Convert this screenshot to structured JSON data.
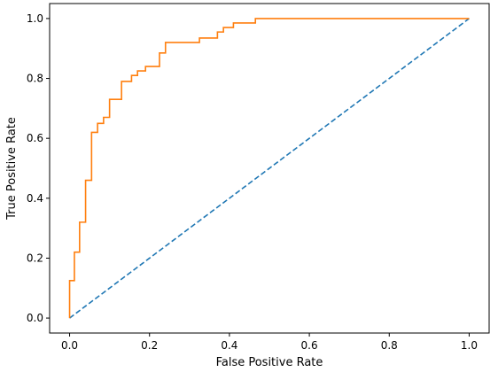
{
  "chart_data": {
    "type": "line",
    "xlabel": "False Positive Rate",
    "ylabel": "True Positive Rate",
    "xlim": [
      -0.05,
      1.05
    ],
    "ylim": [
      -0.05,
      1.05
    ],
    "xticks": [
      "0.0",
      "0.2",
      "0.4",
      "0.6",
      "0.8",
      "1.0"
    ],
    "yticks": [
      "0.0",
      "0.2",
      "0.4",
      "0.6",
      "0.8",
      "1.0"
    ],
    "grid": false,
    "legend": "none",
    "series": [
      {
        "style": "dashed",
        "color": "#1f77b4",
        "x": [
          0.0,
          1.0
        ],
        "y": [
          0.0,
          1.0
        ]
      },
      {
        "style": "step",
        "color": "#ff7f0e",
        "x": [
          0.0,
          0.0,
          0.012,
          0.012,
          0.025,
          0.025,
          0.04,
          0.04,
          0.055,
          0.055,
          0.07,
          0.07,
          0.085,
          0.085,
          0.1,
          0.1,
          0.13,
          0.13,
          0.155,
          0.155,
          0.17,
          0.17,
          0.19,
          0.19,
          0.225,
          0.225,
          0.24,
          0.24,
          0.325,
          0.325,
          0.37,
          0.37,
          0.385,
          0.385,
          0.41,
          0.41,
          0.465,
          0.465,
          1.0
        ],
        "y": [
          0.0,
          0.125,
          0.125,
          0.22,
          0.22,
          0.32,
          0.32,
          0.46,
          0.46,
          0.62,
          0.62,
          0.65,
          0.65,
          0.67,
          0.67,
          0.73,
          0.73,
          0.79,
          0.79,
          0.81,
          0.81,
          0.825,
          0.825,
          0.84,
          0.84,
          0.885,
          0.885,
          0.92,
          0.92,
          0.935,
          0.935,
          0.955,
          0.955,
          0.97,
          0.97,
          0.985,
          0.985,
          1.0,
          1.0
        ]
      }
    ]
  }
}
